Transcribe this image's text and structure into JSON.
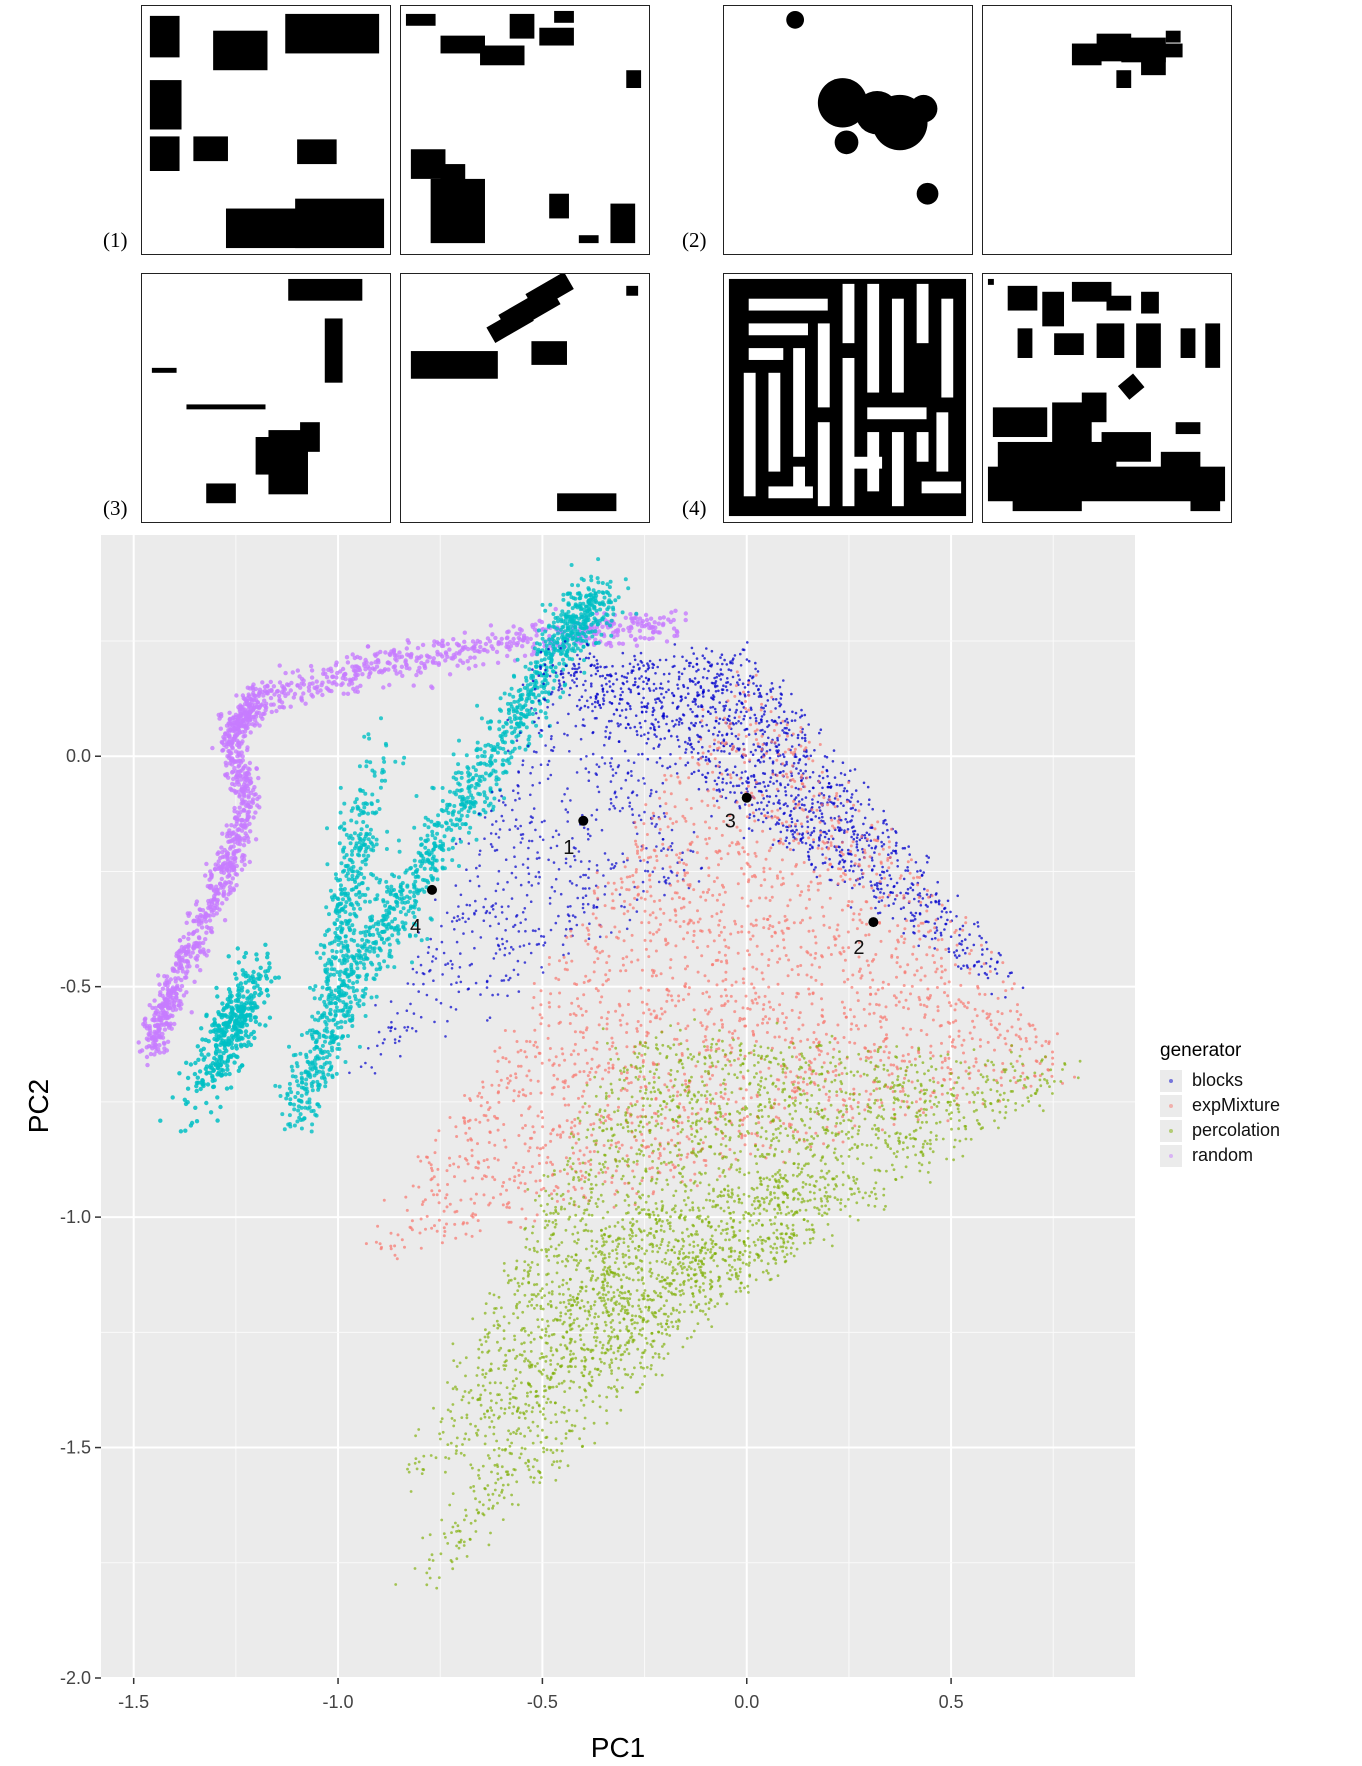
{
  "panels": [
    {
      "label": "(1)"
    },
    {
      "label": "(2)"
    },
    {
      "label": "(3)"
    },
    {
      "label": "(4)"
    }
  ],
  "chart_data": {
    "type": "scatter",
    "title": "",
    "xlabel": "PC1",
    "ylabel": "PC2",
    "xlim": [
      -1.58,
      0.95
    ],
    "ylim": [
      -2.0,
      0.48
    ],
    "x_ticks": [
      -1.5,
      -1.0,
      -0.5,
      0.0,
      0.5
    ],
    "y_ticks": [
      -2.0,
      -1.5,
      -1.0,
      -0.5,
      0.0
    ],
    "x_tick_labels": [
      "-1.5",
      "-1.0",
      "-0.5",
      "0.0",
      "0.5"
    ],
    "y_tick_labels": [
      "-2.0",
      "-1.5",
      "-1.0",
      "-0.5",
      "0.0"
    ],
    "grid": true,
    "legend": {
      "title": "generator",
      "position": "right"
    },
    "series": [
      {
        "name": "blocks",
        "color": "#0000cc"
      },
      {
        "name": "expMixture",
        "color": "#f8766d"
      },
      {
        "name": "percolation",
        "color": "#7cae00"
      },
      {
        "name": "random",
        "color": "#c77cff"
      },
      {
        "name": "",
        "color": "#00bfc4"
      }
    ],
    "highlighted_points": [
      {
        "label": "1",
        "x": -0.4,
        "y": -0.14
      },
      {
        "label": "2",
        "x": 0.31,
        "y": -0.36
      },
      {
        "label": "3",
        "x": 0.0,
        "y": -0.09
      },
      {
        "label": "4",
        "x": -0.77,
        "y": -0.29
      }
    ]
  }
}
